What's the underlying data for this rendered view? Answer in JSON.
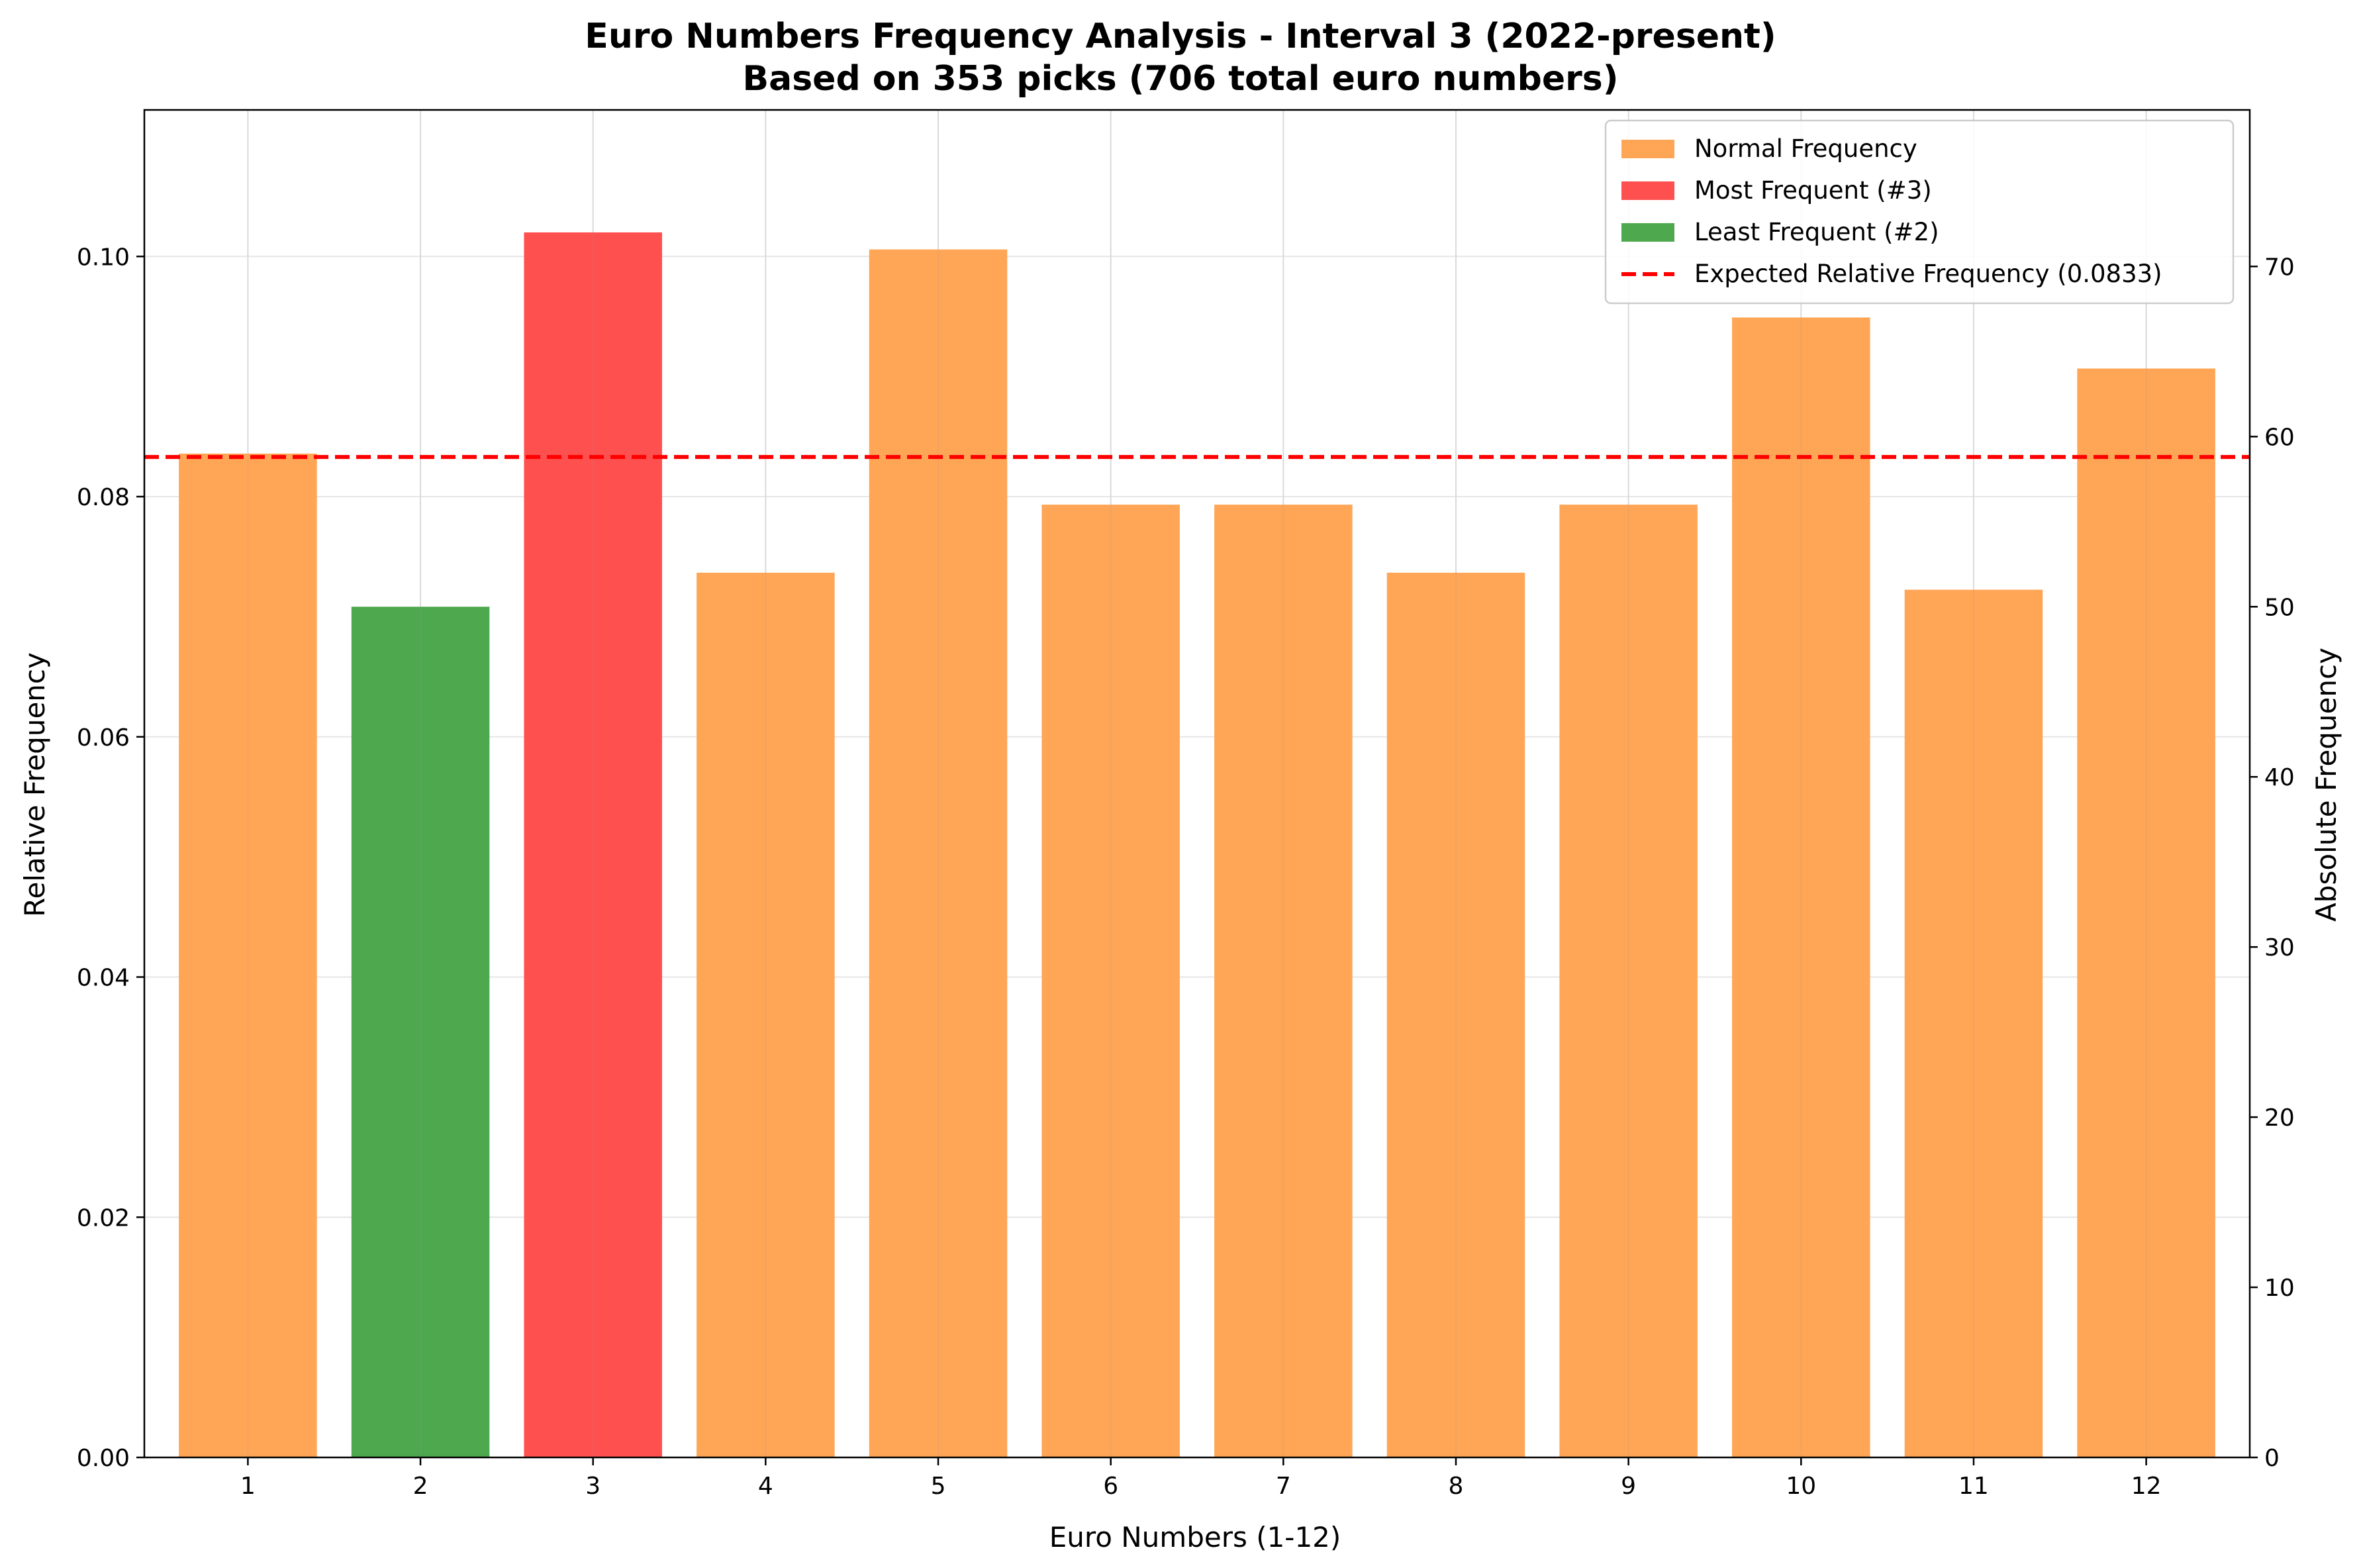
{
  "chart_data": {
    "type": "bar",
    "title": "Euro Numbers Frequency Analysis - Interval 3 (2022-present)",
    "subtitle": "Based on 353 picks (706 total euro numbers)",
    "xlabel": "Euro Numbers (1-12)",
    "ylabel": "Relative Frequency",
    "ylabel_right": "Absolute Frequency",
    "categories": [
      "1",
      "2",
      "3",
      "4",
      "5",
      "6",
      "7",
      "8",
      "9",
      "10",
      "11",
      "12"
    ],
    "values": [
      59,
      50,
      72,
      52,
      71,
      56,
      56,
      52,
      56,
      67,
      51,
      64
    ],
    "relative_values": [
      0.0836,
      0.0708,
      0.102,
      0.0737,
      0.1006,
      0.0793,
      0.0793,
      0.0737,
      0.0793,
      0.0949,
      0.0722,
      0.0907
    ],
    "bar_categories": [
      "normal",
      "least",
      "most",
      "normal",
      "normal",
      "normal",
      "normal",
      "normal",
      "normal",
      "normal",
      "normal",
      "normal"
    ],
    "colors": {
      "normal": "#FFA556",
      "most": "#FF5050",
      "least": "#4EA84E",
      "expected": "#FF0000",
      "grid": "#E6E6E6"
    },
    "expected_relative": 0.0833,
    "ylim": [
      0,
      0.1122
    ],
    "ylim_right": [
      0,
      79.2
    ],
    "yticks": [
      "0.00",
      "0.02",
      "0.04",
      "0.06",
      "0.08",
      "0.10"
    ],
    "yticks_right": [
      "0",
      "10",
      "20",
      "30",
      "40",
      "50",
      "60",
      "70"
    ],
    "grid": true,
    "legend_position": "top-right",
    "legend": [
      {
        "label": "Normal Frequency",
        "key": "normal",
        "kind": "patch"
      },
      {
        "label": "Most Frequent (#3)",
        "key": "most",
        "kind": "patch"
      },
      {
        "label": "Least Frequent (#2)",
        "key": "least",
        "kind": "patch"
      },
      {
        "label": "Expected Relative Frequency (0.0833)",
        "key": "expected",
        "kind": "dashed-line"
      }
    ]
  }
}
